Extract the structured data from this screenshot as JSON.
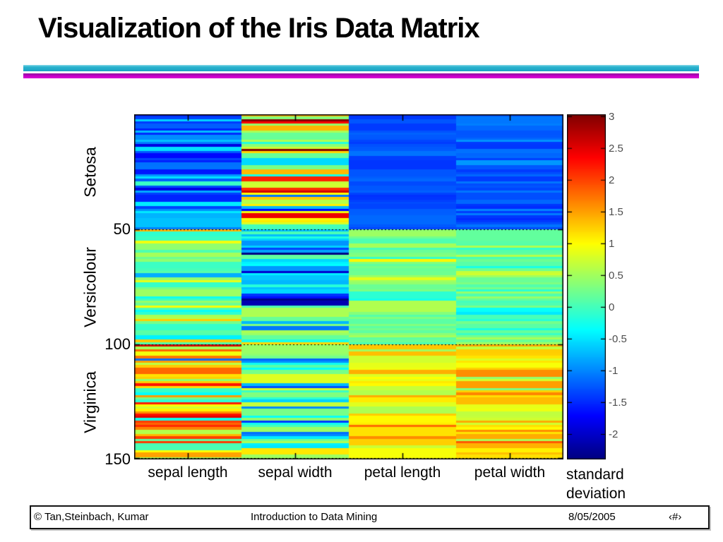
{
  "slide": {
    "title": "Visualization of the Iris Data Matrix",
    "accent_colors": {
      "teal": "#1fa9c7",
      "magenta": "#c800c8"
    },
    "footer": {
      "copyright": "© Tan,Steinbach, Kumar",
      "center": "Introduction to Data Mining",
      "date": "8/05/2005",
      "page": "‹#›"
    }
  },
  "chart_data": {
    "type": "heatmap",
    "description": "Standardized (z-score) Iris data matrix: 150 flowers (rows) by 4 attributes (columns), jet colormap",
    "n_rows": 150,
    "x_categories": [
      "sepal length",
      "sepal width",
      "petal length",
      "petal width"
    ],
    "y_tick_labels": [
      "50",
      "100",
      "150"
    ],
    "y_tick_rows": [
      50,
      100,
      150
    ],
    "row_groups": [
      {
        "label": "Setosa",
        "from_row": 1,
        "to_row": 50
      },
      {
        "label": "Versicolour",
        "from_row": 51,
        "to_row": 100
      },
      {
        "label": "Virginica",
        "from_row": 101,
        "to_row": 150
      }
    ],
    "separators_at_rows": [
      50,
      100,
      150
    ],
    "colorbar": {
      "label": "standard deviation",
      "tick_labels": [
        "3",
        "2.5",
        "2",
        "1.5",
        "1",
        "0.5",
        "0",
        "-0.5",
        "-1",
        "-1.5",
        "-2"
      ],
      "tick_values": [
        3,
        2.5,
        2,
        1.5,
        1,
        0.5,
        0,
        -0.5,
        -1,
        -1.5,
        -2
      ],
      "range": [
        -2.4,
        3.03
      ],
      "colormap": "jet"
    },
    "block_stats": [
      {
        "species": "Setosa",
        "mean_sd_per_feature": [
          [
            -1.01,
            0.42
          ],
          [
            0.85,
            0.9
          ],
          [
            -1.3,
            0.1
          ],
          [
            -1.25,
            0.14
          ]
        ]
      },
      {
        "species": "Versicolour",
        "mean_sd_per_feature": [
          [
            0.11,
            0.62
          ],
          [
            -0.66,
            0.71
          ],
          [
            0.28,
            0.27
          ],
          [
            0.16,
            0.26
          ]
        ]
      },
      {
        "species": "Virginica",
        "mean_sd_per_feature": [
          [
            0.9,
            0.76
          ],
          [
            -0.17,
            0.73
          ],
          [
            1.02,
            0.31
          ],
          [
            1.1,
            0.36
          ]
        ]
      }
    ],
    "outliers": [
      [
        13,
        0,
        -1.87
      ],
      [
        8,
        0,
        -1.5
      ],
      [
        15,
        1,
        3.03
      ],
      [
        33,
        1,
        2.58
      ],
      [
        32,
        1,
        2.12
      ],
      [
        41,
        1,
        -1.73
      ],
      [
        50,
        0,
        1.4
      ],
      [
        60,
        1,
        -2.37
      ],
      [
        68,
        1,
        -1.97
      ],
      [
        100,
        3,
        1.45
      ],
      [
        106,
        0,
        -1.13
      ],
      [
        117,
        0,
        2.25
      ],
      [
        119,
        3,
        0.29
      ],
      [
        130,
        0,
        2.25
      ],
      [
        131,
        0,
        2.5
      ],
      [
        135,
        0,
        2.12
      ]
    ],
    "seed": 11
  }
}
